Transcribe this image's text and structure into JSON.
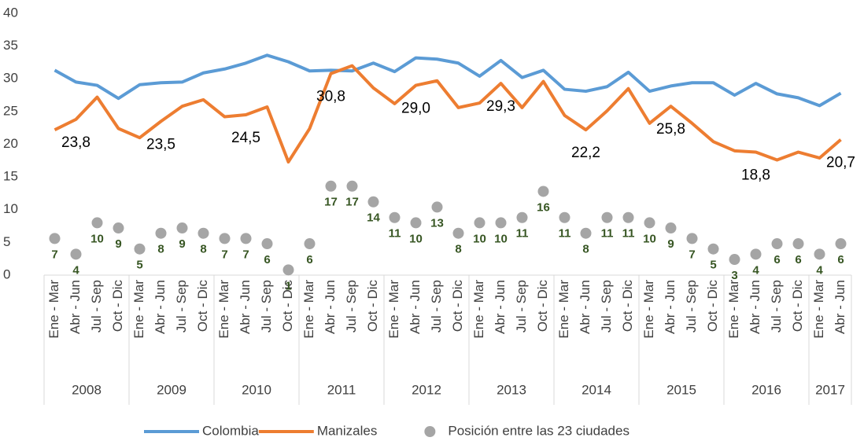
{
  "chart_data": {
    "type": "line",
    "categories": [
      "Ene - Mar",
      "Abr - Jun",
      "Jul - Sep",
      "Oct - Dic",
      "Ene - Mar",
      "Abr - Jun",
      "Jul - Sep",
      "Oct - Dic",
      "Ene - Mar",
      "Abr - Jun",
      "Jul - Sep",
      "Oct - Dic",
      "Ene - Mar",
      "Abr - Jun",
      "Jul - Sep",
      "Oct - Dic",
      "Ene - Mar",
      "Abr - Jun",
      "Jul - Sep",
      "Oct - Dic",
      "Ene - Mar",
      "Abr - Jun",
      "Jul - Sep",
      "Oct - Dic",
      "Ene - Mar",
      "Abr - Jun",
      "Jul - Sep",
      "Oct - Dic",
      "Ene - Mar",
      "Abr - Jun",
      "Jul - Sep",
      "Oct - Dic",
      "Ene - Mar",
      "Abr - Jun",
      "Jul - Sep",
      "Oct - Dic",
      "Ene - Mar",
      "Abr - Jun"
    ],
    "groups": [
      {
        "label": "2008",
        "span": 4
      },
      {
        "label": "2009",
        "span": 4
      },
      {
        "label": "2010",
        "span": 4
      },
      {
        "label": "2011",
        "span": 4
      },
      {
        "label": "2012",
        "span": 4
      },
      {
        "label": "2013",
        "span": 4
      },
      {
        "label": "2014",
        "span": 4
      },
      {
        "label": "2015",
        "span": 4
      },
      {
        "label": "2016",
        "span": 4
      },
      {
        "label": "2017",
        "span": 2
      }
    ],
    "ylim": [
      0,
      40
    ],
    "yticks": [
      0,
      5,
      10,
      15,
      20,
      25,
      30,
      35,
      40
    ],
    "y2lim": [
      0,
      50
    ],
    "series": [
      {
        "name": "Colombia",
        "color": "#5b9bd5",
        "values": [
          31.3,
          29.5,
          29.0,
          27.0,
          29.1,
          29.4,
          29.5,
          30.9,
          31.5,
          32.4,
          33.6,
          32.6,
          31.2,
          31.3,
          31.2,
          32.4,
          31.1,
          33.2,
          33.0,
          32.4,
          30.4,
          32.8,
          30.2,
          31.3,
          28.4,
          28.1,
          28.8,
          31.0,
          28.1,
          28.9,
          29.4,
          29.4,
          27.5,
          29.3,
          27.7,
          27.1,
          25.9,
          27.8
        ]
      },
      {
        "name": "Manizales",
        "color": "#ed7d31",
        "values": [
          22.2,
          23.8,
          27.2,
          22.4,
          21.0,
          23.5,
          25.8,
          26.8,
          24.2,
          24.5,
          25.7,
          17.3,
          22.4,
          30.8,
          32.0,
          28.6,
          26.2,
          29.0,
          29.7,
          25.6,
          26.3,
          29.3,
          25.6,
          29.6,
          24.4,
          22.2,
          25.1,
          28.5,
          23.2,
          25.8,
          23.2,
          20.4,
          19.0,
          18.8,
          17.6,
          18.8,
          17.9,
          20.7
        ],
        "value_labels": [
          null,
          "23,8",
          null,
          null,
          null,
          "23,5",
          null,
          null,
          null,
          "24,5",
          null,
          null,
          null,
          "30,8",
          null,
          null,
          null,
          "29,0",
          null,
          null,
          null,
          "29,3",
          null,
          null,
          null,
          "22,2",
          null,
          null,
          null,
          "25,8",
          null,
          null,
          null,
          "18,8",
          null,
          null,
          null,
          "20,7"
        ]
      },
      {
        "name": "Posición entre las 23 ciudades",
        "color": "#a5a5a5",
        "marker": "dot",
        "axis": "y2",
        "label_color": "#375623",
        "values": [
          7,
          4,
          10,
          9,
          5,
          8,
          9,
          8,
          7,
          7,
          6,
          1,
          6,
          17,
          17,
          14,
          11,
          10,
          13,
          8,
          10,
          10,
          11,
          16,
          11,
          8,
          11,
          11,
          10,
          9,
          7,
          5,
          3,
          4,
          6,
          6,
          4,
          6
        ]
      }
    ]
  }
}
